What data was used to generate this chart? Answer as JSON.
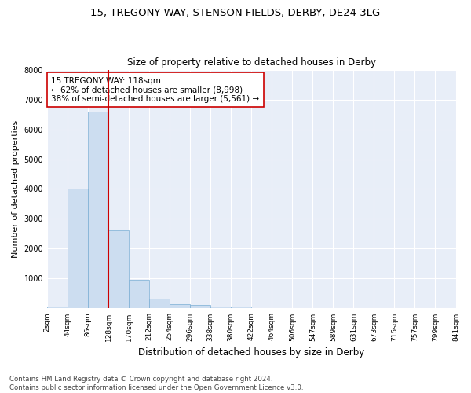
{
  "title": "15, TREGONY WAY, STENSON FIELDS, DERBY, DE24 3LG",
  "subtitle": "Size of property relative to detached houses in Derby",
  "xlabel": "Distribution of detached houses by size in Derby",
  "ylabel": "Number of detached properties",
  "bar_values": [
    75,
    4000,
    6600,
    2620,
    960,
    320,
    130,
    110,
    75,
    60,
    0,
    0,
    0,
    0,
    0,
    0,
    0,
    0,
    0,
    0
  ],
  "bin_labels": [
    "2sqm",
    "44sqm",
    "86sqm",
    "128sqm",
    "170sqm",
    "212sqm",
    "254sqm",
    "296sqm",
    "338sqm",
    "380sqm",
    "422sqm",
    "464sqm",
    "506sqm",
    "547sqm",
    "589sqm",
    "631sqm",
    "673sqm",
    "715sqm",
    "757sqm",
    "799sqm",
    "841sqm"
  ],
  "bar_color": "#ccddf0",
  "bar_edge_color": "#7aadd4",
  "vline_color": "#cc0000",
  "vline_x": 3.0,
  "annotation_text": "15 TREGONY WAY: 118sqm\n← 62% of detached houses are smaller (8,998)\n38% of semi-detached houses are larger (5,561) →",
  "annotation_box_color": "#ffffff",
  "annotation_box_edge": "#cc0000",
  "ylim": [
    0,
    8000
  ],
  "yticks": [
    0,
    1000,
    2000,
    3000,
    4000,
    5000,
    6000,
    7000,
    8000
  ],
  "bg_color": "#e8eef8",
  "footnote": "Contains HM Land Registry data © Crown copyright and database right 2024.\nContains public sector information licensed under the Open Government Licence v3.0.",
  "title_fontsize": 9.5,
  "subtitle_fontsize": 8.5,
  "xlabel_fontsize": 8.5,
  "ylabel_fontsize": 8,
  "tick_fontsize": 6.5,
  "annotation_fontsize": 7.5,
  "footnote_fontsize": 6.2
}
